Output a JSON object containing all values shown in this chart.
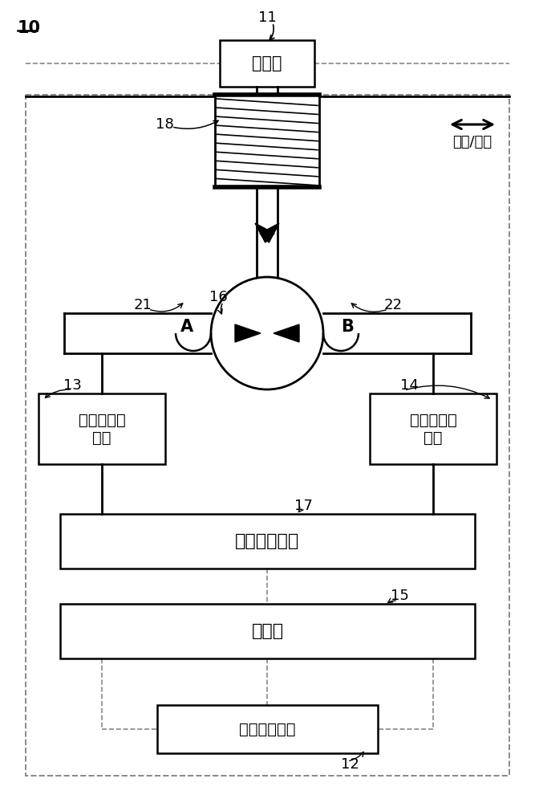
{
  "bg_color": "#ffffff",
  "line_color": "#000000",
  "dashed_color": "#888888",
  "label_10": "10",
  "label_11": "11",
  "label_12": "12",
  "label_13": "13",
  "label_14": "14",
  "label_15": "15",
  "label_16": "16",
  "label_17": "17",
  "label_18": "18",
  "label_21": "21",
  "label_22": "22",
  "text_encoder": "编码器",
  "text_cable_dir": "收缆/放缆",
  "text_A": "A",
  "text_B": "B",
  "text_sensor1": "第一压力传\n感器",
  "text_sensor2": "第二压力传\n感器",
  "text_hydraulic": "液压控制装置",
  "text_controller": "控制器",
  "text_accel": "加速度传感器"
}
